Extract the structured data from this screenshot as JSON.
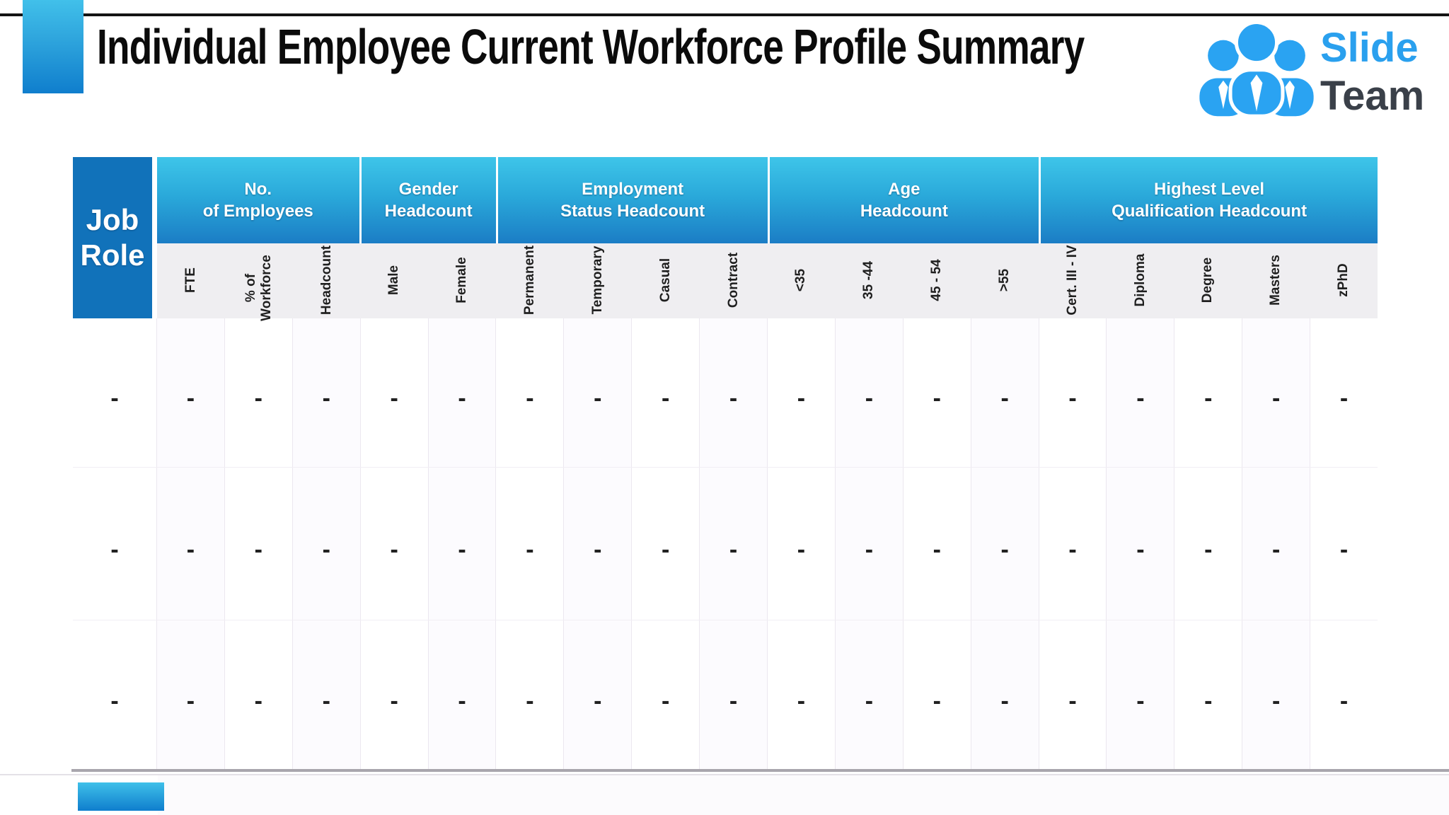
{
  "slide": {
    "title": "Individual Employee Current Workforce Profile Summary"
  },
  "logo": {
    "brand_line1": "Slide",
    "brand_line2": "Team"
  },
  "table": {
    "corner_header": "Job\nRole",
    "groups": [
      {
        "label": "No.\nof Employees",
        "span": 3
      },
      {
        "label": "Gender\nHeadcount",
        "span": 2
      },
      {
        "label": "Employment\nStatus Headcount",
        "span": 4
      },
      {
        "label": "Age\nHeadcount",
        "span": 4
      },
      {
        "label": "Highest Level\nQualification Headcount",
        "span": 5
      }
    ],
    "columns": [
      "FTE",
      "% of\nWorkforce",
      "Headcount",
      "Male",
      "Female",
      "Permanent",
      "Temporary",
      "Casual",
      "Contract",
      "<35",
      "35 -44",
      "45 - 54",
      ">55",
      "Cert. III - IV",
      "Diploma",
      "Degree",
      "Masters",
      "zPhD"
    ],
    "rows": [
      [
        "-",
        "-",
        "-",
        "-",
        "-",
        "-",
        "-",
        "-",
        "-",
        "-",
        "-",
        "-",
        "-",
        "-",
        "-",
        "-",
        "-",
        "-",
        "-"
      ],
      [
        "-",
        "-",
        "-",
        "-",
        "-",
        "-",
        "-",
        "-",
        "-",
        "-",
        "-",
        "-",
        "-",
        "-",
        "-",
        "-",
        "-",
        "-",
        "-"
      ],
      [
        "-",
        "-",
        "-",
        "-",
        "-",
        "-",
        "-",
        "-",
        "-",
        "-",
        "-",
        "-",
        "-",
        "-",
        "-",
        "-",
        "-",
        "-",
        "-"
      ]
    ]
  },
  "colors": {
    "corner_blue": "#1172ba",
    "header_gradient_top": "#3ec5e9",
    "header_gradient_bottom": "#1b7dc5",
    "accent_bar_top": "#41c0ea",
    "accent_bar_bottom": "#0f7ecd",
    "logo_blue": "#2aa0ee",
    "logo_dark": "#3a4049",
    "top_rule": "#141414",
    "table_bottom_border": "#a9a6ad"
  }
}
